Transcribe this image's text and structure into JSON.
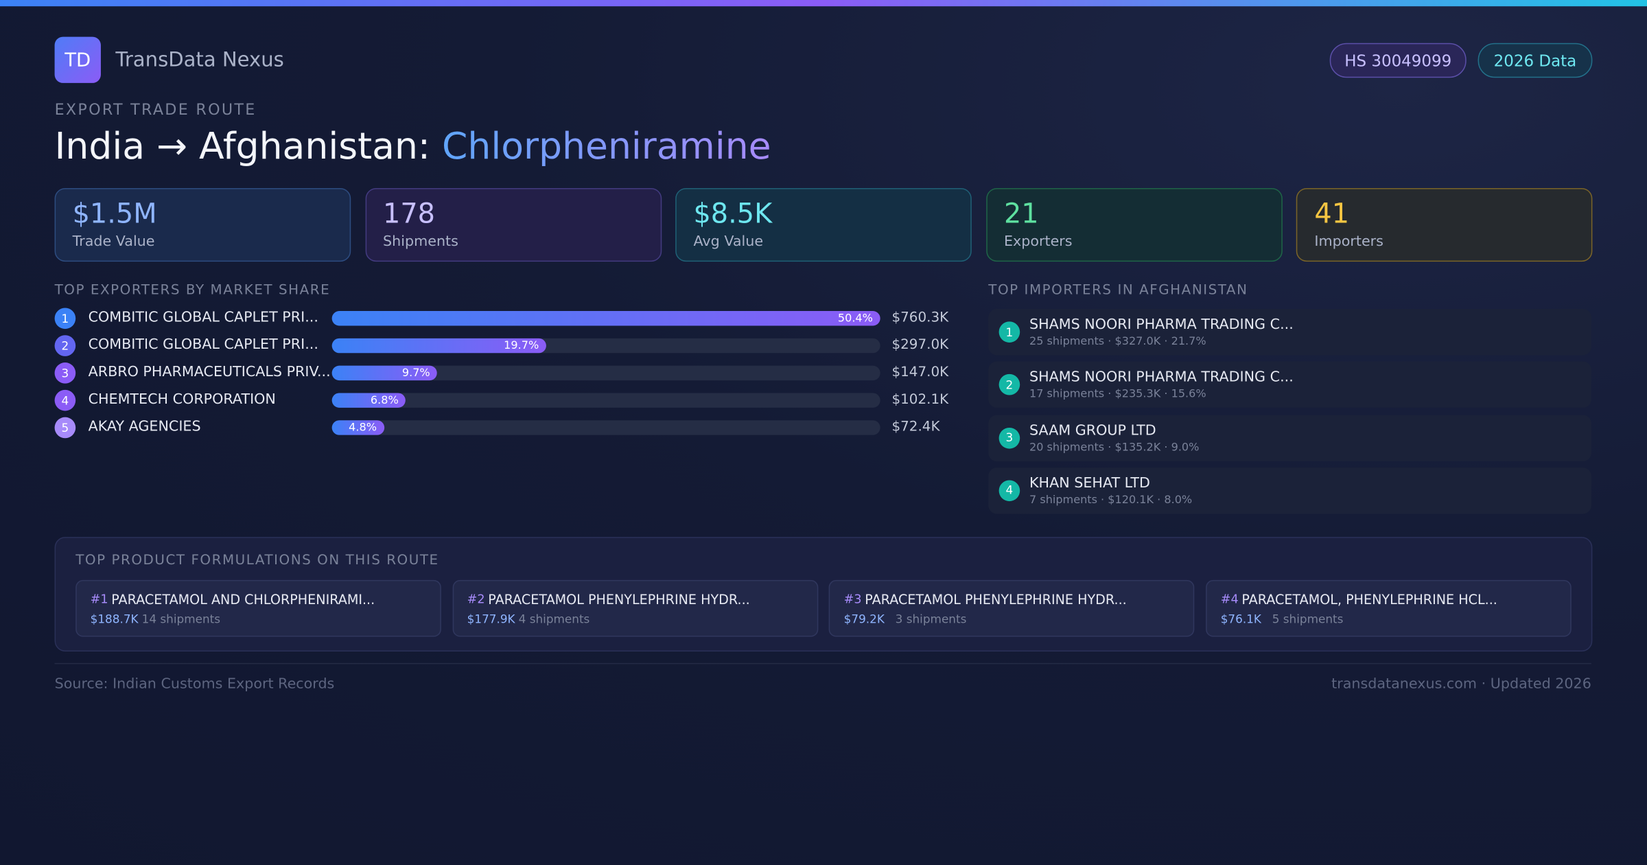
{
  "header": {
    "logo": "TD",
    "brand": "TransData Nexus",
    "badges": [
      "HS 30049099",
      "2026 Data"
    ],
    "eyebrow": "EXPORT TRADE ROUTE",
    "title": "India → Afghanistan: ",
    "title_product": "Chlorpheniramine"
  },
  "stats": [
    {
      "value": "$1.5M",
      "label": "Trade Value"
    },
    {
      "value": "178",
      "label": "Shipments"
    },
    {
      "value": "$8.5K",
      "label": "Avg Value"
    },
    {
      "value": "21",
      "label": "Exporters"
    },
    {
      "value": "41",
      "label": "Importers"
    }
  ],
  "exporters": {
    "title": "TOP EXPORTERS BY MARKET SHARE",
    "rows": [
      {
        "rank": 1,
        "name": "COMBITIC GLOBAL CAPLET PRI...",
        "share": 50.4,
        "share_label": "50.4%",
        "value": "$760.3K"
      },
      {
        "rank": 2,
        "name": "COMBITIC GLOBAL CAPLET PRI...",
        "share": 19.7,
        "share_label": "19.7%",
        "value": "$297.0K"
      },
      {
        "rank": 3,
        "name": "ARBRO PHARMACEUTICALS PRIV...",
        "share": 9.7,
        "share_label": "9.7%",
        "value": "$147.0K"
      },
      {
        "rank": 4,
        "name": "CHEMTECH CORPORATION",
        "share": 6.8,
        "share_label": "6.8%",
        "value": "$102.1K"
      },
      {
        "rank": 5,
        "name": "AKAY AGENCIES",
        "share": 4.8,
        "share_label": "4.8%",
        "value": "$72.4K"
      }
    ]
  },
  "importers": {
    "title": "TOP IMPORTERS IN AFGHANISTAN",
    "rows": [
      {
        "rank": 1,
        "name": "SHAMS NOORI PHARMA TRADING C...",
        "detail": "25 shipments · $327.0K · 21.7%"
      },
      {
        "rank": 2,
        "name": "SHAMS NOORI PHARMA TRADING C...",
        "detail": "17 shipments · $235.3K · 15.6%"
      },
      {
        "rank": 3,
        "name": "SAAM GROUP LTD",
        "detail": "20 shipments · $135.2K · 9.0%"
      },
      {
        "rank": 4,
        "name": "KHAN SEHAT LTD",
        "detail": "7 shipments · $120.1K · 8.0%"
      }
    ]
  },
  "formulations": {
    "title": "TOP PRODUCT FORMULATIONS ON THIS ROUTE",
    "items": [
      {
        "rank": "#1",
        "name": "PARACETAMOL AND CHLORPHENIRAMI...",
        "value": "$188.7K",
        "shipments": "14 shipments"
      },
      {
        "rank": "#2",
        "name": "PARACETAMOL PHENYLEPHRINE HYDR...",
        "value": "$177.9K",
        "shipments": "4 shipments"
      },
      {
        "rank": "#3",
        "name": "PARACETAMOL PHENYLEPHRINE HYDR...",
        "value": "$79.2K",
        "shipments": "3 shipments"
      },
      {
        "rank": "#4",
        "name": "PARACETAMOL, PHENYLEPHRINE HCL...",
        "value": "$76.1K",
        "shipments": "5 shipments"
      }
    ]
  },
  "footer": {
    "source": "Source: Indian Customs Export Records",
    "site": "transdatanexus.com · Updated 2026"
  }
}
